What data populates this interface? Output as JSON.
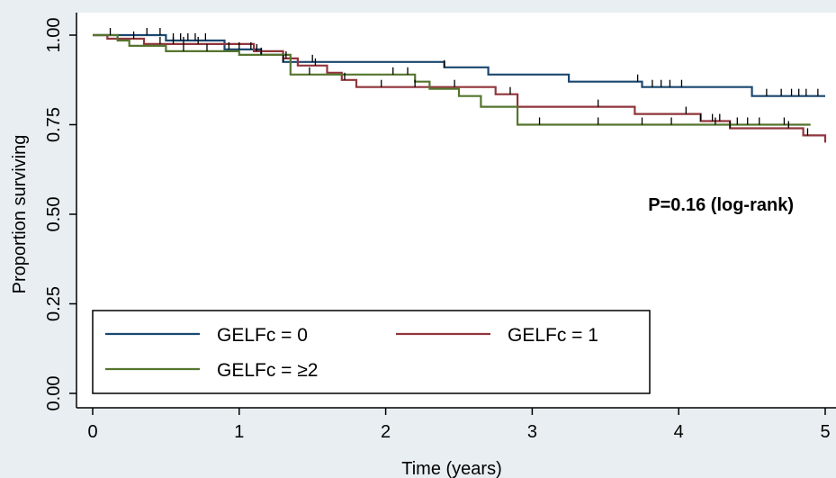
{
  "chart_data": {
    "type": "line",
    "subtype": "kaplan-meier",
    "xlabel": "Time (years)",
    "ylabel": "Proportion surviving",
    "xlim": [
      0,
      5
    ],
    "ylim": [
      0,
      1
    ],
    "x_ticks": [
      "0",
      "1",
      "2",
      "3",
      "4",
      "5"
    ],
    "y_ticks": [
      "0.00",
      "0.25",
      "0.50",
      "0.75",
      "1.00"
    ],
    "annotation": "P=0.16 (log-rank)",
    "legend_position": "bottom-left inside plot",
    "grid": false,
    "series": [
      {
        "name": "GELFc = 0",
        "color": "#1a476f",
        "points": [
          [
            0,
            1.0
          ],
          [
            0.5,
            1.0
          ],
          [
            0.5,
            0.985
          ],
          [
            0.9,
            0.985
          ],
          [
            0.9,
            0.96
          ],
          [
            1.15,
            0.96
          ],
          [
            1.15,
            0.945
          ],
          [
            1.3,
            0.945
          ],
          [
            1.3,
            0.925
          ],
          [
            2.4,
            0.925
          ],
          [
            2.4,
            0.91
          ],
          [
            2.7,
            0.91
          ],
          [
            2.7,
            0.89
          ],
          [
            3.25,
            0.89
          ],
          [
            3.25,
            0.87
          ],
          [
            3.75,
            0.87
          ],
          [
            3.75,
            0.855
          ],
          [
            4.5,
            0.855
          ],
          [
            4.5,
            0.83
          ],
          [
            5.0,
            0.83
          ]
        ],
        "censor_x": [
          0.12,
          0.37,
          0.46,
          0.55,
          0.6,
          0.65,
          0.7,
          0.77,
          0.93,
          1.0,
          1.08,
          1.15,
          1.3,
          1.5,
          2.4,
          3.72,
          3.82,
          3.88,
          3.94,
          4.02,
          4.6,
          4.7,
          4.77,
          4.82,
          4.87,
          4.95
        ]
      },
      {
        "name": "GELFc = 1",
        "color": "#90353b",
        "points": [
          [
            0,
            1.0
          ],
          [
            0.1,
            1.0
          ],
          [
            0.1,
            0.99
          ],
          [
            0.35,
            0.99
          ],
          [
            0.35,
            0.975
          ],
          [
            1.1,
            0.975
          ],
          [
            1.1,
            0.955
          ],
          [
            1.3,
            0.955
          ],
          [
            1.3,
            0.935
          ],
          [
            1.4,
            0.935
          ],
          [
            1.4,
            0.915
          ],
          [
            1.6,
            0.915
          ],
          [
            1.6,
            0.895
          ],
          [
            1.7,
            0.895
          ],
          [
            1.7,
            0.875
          ],
          [
            1.8,
            0.875
          ],
          [
            1.8,
            0.855
          ],
          [
            2.75,
            0.855
          ],
          [
            2.75,
            0.835
          ],
          [
            2.9,
            0.835
          ],
          [
            2.9,
            0.8
          ],
          [
            3.7,
            0.8
          ],
          [
            3.7,
            0.78
          ],
          [
            4.15,
            0.78
          ],
          [
            4.15,
            0.76
          ],
          [
            4.35,
            0.76
          ],
          [
            4.35,
            0.74
          ],
          [
            4.85,
            0.74
          ],
          [
            4.85,
            0.72
          ],
          [
            5.0,
            0.72
          ],
          [
            5.0,
            0.7
          ]
        ],
        "censor_x": [
          0.28,
          0.46,
          0.55,
          0.62,
          0.72,
          1.12,
          1.32,
          1.52,
          1.72,
          1.97,
          2.2,
          2.47,
          2.85,
          3.45,
          4.05,
          4.15,
          4.23,
          4.28,
          4.35,
          4.75,
          4.88
        ]
      },
      {
        "name": "GELFc = ≥2",
        "color": "#55752f",
        "points": [
          [
            0,
            1.0
          ],
          [
            0.17,
            1.0
          ],
          [
            0.17,
            0.985
          ],
          [
            0.25,
            0.985
          ],
          [
            0.25,
            0.97
          ],
          [
            0.5,
            0.97
          ],
          [
            0.5,
            0.955
          ],
          [
            1.0,
            0.955
          ],
          [
            1.0,
            0.945
          ],
          [
            1.35,
            0.945
          ],
          [
            1.35,
            0.89
          ],
          [
            2.2,
            0.89
          ],
          [
            2.2,
            0.87
          ],
          [
            2.3,
            0.87
          ],
          [
            2.3,
            0.85
          ],
          [
            2.5,
            0.85
          ],
          [
            2.5,
            0.83
          ],
          [
            2.65,
            0.83
          ],
          [
            2.65,
            0.8
          ],
          [
            2.9,
            0.8
          ],
          [
            2.9,
            0.75
          ],
          [
            4.9,
            0.75
          ]
        ],
        "censor_x": [
          0.62,
          0.78,
          1.48,
          2.05,
          2.15,
          3.05,
          3.45,
          3.75,
          3.95,
          4.25,
          4.4,
          4.47,
          4.55,
          4.72
        ]
      }
    ]
  }
}
